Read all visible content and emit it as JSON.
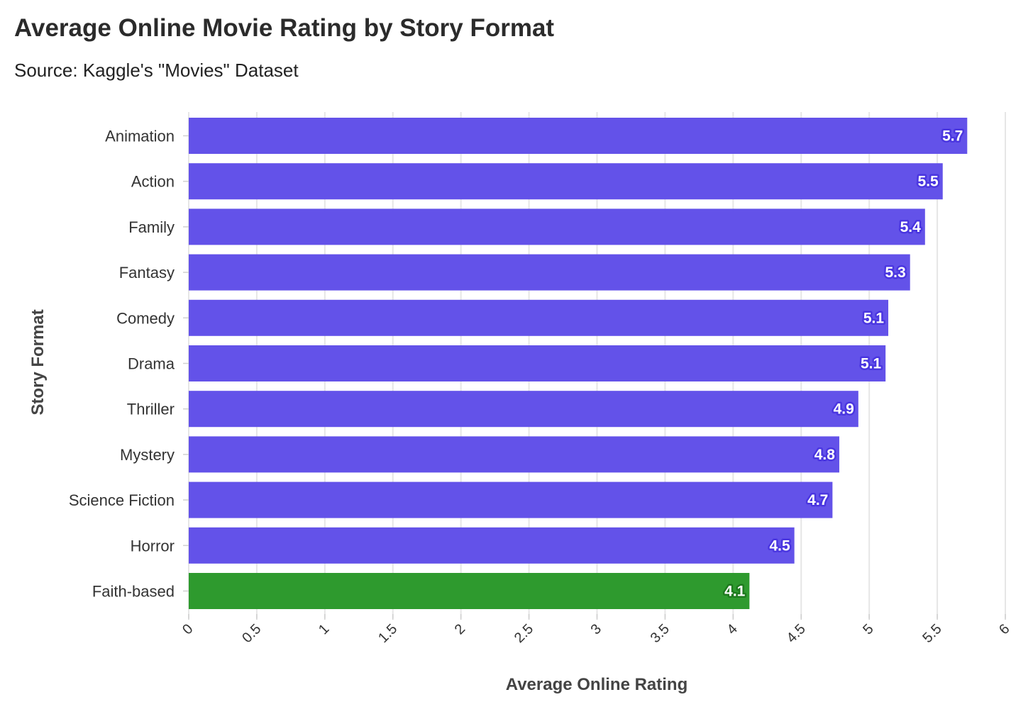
{
  "chart_data": {
    "type": "bar",
    "orientation": "horizontal",
    "title": "Average Online Movie Rating by Story Format",
    "subtitle": "Source: Kaggle's \"Movies\" Dataset",
    "xlabel": "Average Online Rating",
    "ylabel": "Story Format",
    "xlim": [
      0,
      6
    ],
    "xticks": [
      "0",
      "0.5",
      "1",
      "1.5",
      "2",
      "2.5",
      "3",
      "3.5",
      "4",
      "4.5",
      "5",
      "5.5",
      "6"
    ],
    "grid": true,
    "categories": [
      "Animation",
      "Action",
      "Family",
      "Fantasy",
      "Comedy",
      "Drama",
      "Thriller",
      "Mystery",
      "Science Fiction",
      "Horror",
      "Faith-based"
    ],
    "values": [
      5.72,
      5.54,
      5.41,
      5.3,
      5.14,
      5.12,
      4.92,
      4.78,
      4.73,
      4.45,
      4.12
    ],
    "data_labels": [
      "5.7",
      "5.5",
      "5.4",
      "5.3",
      "5.1",
      "5.1",
      "4.9",
      "4.8",
      "4.7",
      "4.5",
      "4.1"
    ],
    "colors": {
      "default_bar": "#6352E9",
      "default_label_outline": "#4A36E0",
      "highlight_bar": "#2E9A2E",
      "highlight_label_outline": "#1E7A1E",
      "grid": "#E6E6E6",
      "tick": "#D0D0D0"
    },
    "highlight_category": "Faith-based"
  }
}
